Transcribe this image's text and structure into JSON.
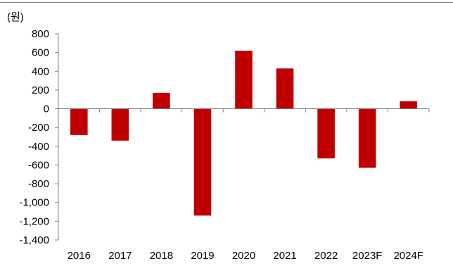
{
  "chart_data": {
    "type": "bar",
    "unit_label": "(원)",
    "categories": [
      "2016",
      "2017",
      "2018",
      "2019",
      "2020",
      "2021",
      "2022",
      "2023F",
      "2024F"
    ],
    "values": [
      -280,
      -340,
      170,
      -1140,
      620,
      430,
      -530,
      -630,
      80
    ],
    "ylim": [
      -1400,
      800
    ],
    "yticks": [
      800,
      600,
      400,
      200,
      0,
      -200,
      -400,
      -600,
      -800,
      -1000,
      -1200,
      -1400
    ],
    "ytick_labels": [
      "800",
      "600",
      "400",
      "200",
      "0",
      "-200",
      "-400",
      "-600",
      "-800",
      "-1,000",
      "-1,200",
      "-1,400"
    ],
    "bar_color": "#C00000",
    "axis_color": "#7F7F7F",
    "grid": false,
    "legend": "none"
  }
}
